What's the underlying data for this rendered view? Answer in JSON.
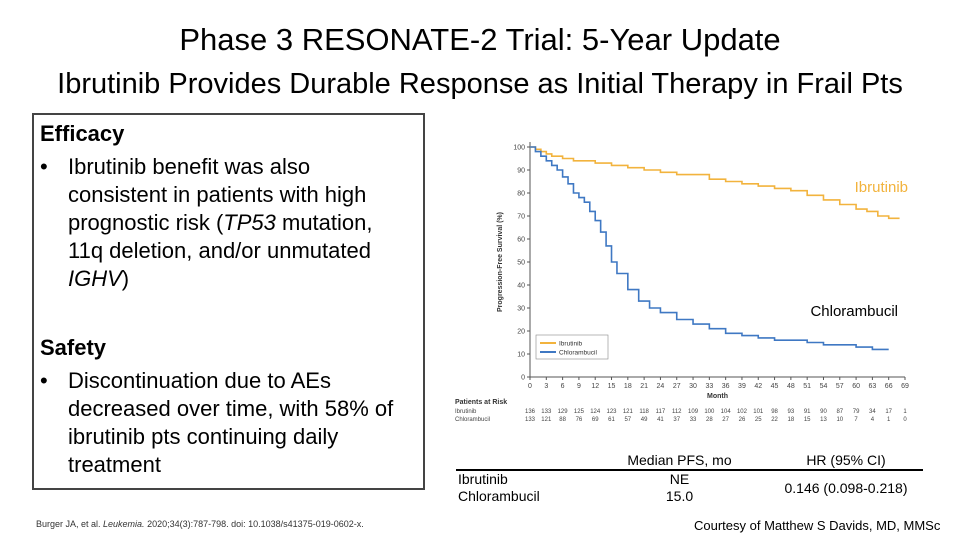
{
  "slide": {
    "title": "Phase 3 RESONATE-2 Trial: 5-Year Update",
    "subtitle": "Ibrutinib Provides Durable Response as Initial Therapy in Frail Pts",
    "efficacy": {
      "heading": "Efficacy",
      "bullet_pre": "Ibrutinib benefit was also consistent in patients with high prognostic risk (",
      "bullet_tp53": "TP53",
      "bullet_mid": " mutation, 11q deletion, and/or unmutated ",
      "bullet_ighv": "IGHV",
      "bullet_post": ")"
    },
    "safety": {
      "heading": "Safety",
      "bullet": "Discontinuation due to AEs decreased over time, with 58% of ibrutinib pts continuing daily treatment"
    },
    "bullet_char": "•",
    "citation_pre": "Burger JA, et al. ",
    "citation_journal": "Leukemia.",
    "citation_post": " 2020;34(3):787-798. doi: 10.1038/s41375-019-0602-x.",
    "courtesy": "Courtesy of Matthew S Davids, MD, MMSc"
  },
  "table": {
    "headers": [
      "",
      "Median PFS, mo",
      "HR (95% CI)"
    ],
    "rows": [
      {
        "arm": "Ibrutinib",
        "median": "NE"
      },
      {
        "arm": "Chlorambucil",
        "median": "15.0"
      }
    ],
    "hr": "0.146 (0.098-0.218)"
  },
  "chart_data": {
    "type": "line",
    "ylabel": "Progression-Free Survival (%)",
    "xlabel": "Month",
    "xlim": [
      0,
      69
    ],
    "ylim": [
      0,
      100
    ],
    "xticks": [
      0,
      3,
      6,
      9,
      12,
      15,
      18,
      21,
      24,
      27,
      30,
      33,
      36,
      39,
      42,
      45,
      48,
      51,
      54,
      57,
      60,
      63,
      66,
      69
    ],
    "yticks": [
      0,
      10,
      20,
      30,
      40,
      50,
      60,
      70,
      80,
      90,
      100
    ],
    "legend_title": "Patients at Risk",
    "legend_placement": "bottom-left",
    "series": [
      {
        "name": "Ibrutinib",
        "color": "#f2b33d",
        "x": [
          0,
          1,
          2,
          3,
          4,
          6,
          8,
          10,
          12,
          15,
          18,
          21,
          24,
          27,
          30,
          33,
          36,
          39,
          42,
          45,
          48,
          51,
          54,
          57,
          60,
          62,
          64,
          66,
          68
        ],
        "y": [
          100,
          99,
          98,
          97,
          96,
          95,
          94,
          94,
          93,
          92,
          91,
          90,
          89,
          88,
          88,
          86,
          85,
          84,
          83,
          82,
          81,
          79,
          77,
          75,
          73,
          72,
          70,
          69,
          69
        ]
      },
      {
        "name": "Chlorambucil",
        "color": "#3f78c3",
        "x": [
          0,
          1,
          2,
          3,
          4,
          5,
          6,
          7,
          8,
          9,
          10,
          11,
          12,
          13,
          14,
          15,
          16,
          18,
          20,
          22,
          24,
          27,
          30,
          33,
          36,
          39,
          42,
          45,
          48,
          51,
          54,
          57,
          60,
          63,
          66
        ],
        "y": [
          100,
          98,
          96,
          94,
          92,
          90,
          87,
          84,
          80,
          78,
          76,
          72,
          68,
          63,
          57,
          50,
          45,
          38,
          33,
          30,
          28,
          25,
          23,
          21,
          19,
          18,
          17,
          16,
          16,
          15,
          14,
          14,
          13,
          12,
          12
        ]
      }
    ],
    "at_risk": [
      {
        "name": "Ibrutinib",
        "values": [
          "136",
          "133",
          "129",
          "125",
          "124",
          "123",
          "121",
          "118",
          "117",
          "112",
          "109",
          "100",
          "104",
          "102",
          "101",
          "98",
          "93",
          "91",
          "90",
          "87",
          "79",
          "34",
          "17",
          "1"
        ]
      },
      {
        "name": "Chlorambucil",
        "values": [
          "133",
          "121",
          "88",
          "76",
          "69",
          "61",
          "57",
          "49",
          "41",
          "37",
          "33",
          "28",
          "27",
          "26",
          "25",
          "22",
          "18",
          "15",
          "13",
          "10",
          "7",
          "4",
          "1",
          "0"
        ]
      }
    ]
  }
}
